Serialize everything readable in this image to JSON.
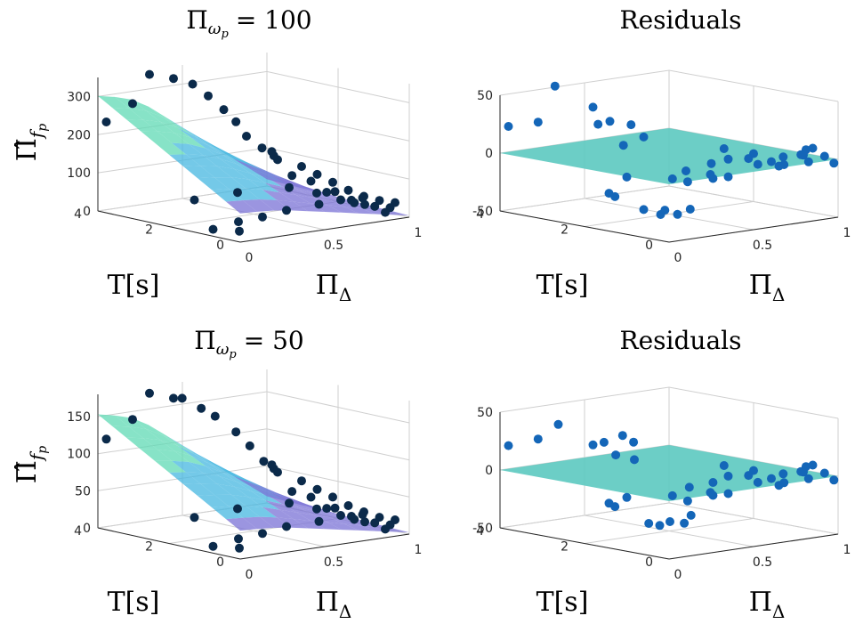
{
  "chart_data": [
    {
      "type": "surface3d",
      "title": "Π_ω_p = 100",
      "title_main": "Π",
      "title_sub": "ω",
      "title_subsub": "p",
      "title_value": "= 100",
      "zlabel_main": "Π̂",
      "zlabel_sub": "f",
      "zlabel_subsub": "p",
      "ylabel": "T[s]",
      "xlabel_main": "Π",
      "xlabel_sub": "Δ",
      "ztick_labels": [
        "0",
        "100",
        "200",
        "300"
      ],
      "ytick_labels": [
        "0",
        "2",
        "4"
      ],
      "xtick_labels": [
        "0",
        "0.5",
        "1"
      ],
      "zlim": [
        0,
        350
      ],
      "xlim": [
        0,
        1
      ],
      "ylim": [
        0,
        4
      ],
      "points": [
        {
          "x": 0.05,
          "y": 4.0,
          "z": 230
        },
        {
          "x": 0.1,
          "y": 3.5,
          "z": 285
        },
        {
          "x": 0.2,
          "y": 3.5,
          "z": 355
        },
        {
          "x": 0.3,
          "y": 3.3,
          "z": 342
        },
        {
          "x": 0.35,
          "y": 3.0,
          "z": 330
        },
        {
          "x": 0.4,
          "y": 2.8,
          "z": 300
        },
        {
          "x": 0.45,
          "y": 2.6,
          "z": 265
        },
        {
          "x": 0.48,
          "y": 2.4,
          "z": 235
        },
        {
          "x": 0.5,
          "y": 2.2,
          "z": 200
        },
        {
          "x": 0.55,
          "y": 2.0,
          "z": 170
        },
        {
          "x": 0.6,
          "y": 1.8,
          "z": 140
        },
        {
          "x": 0.62,
          "y": 2.0,
          "z": 145
        },
        {
          "x": 0.65,
          "y": 2.2,
          "z": 150
        },
        {
          "x": 0.7,
          "y": 1.6,
          "z": 120
        },
        {
          "x": 0.75,
          "y": 1.4,
          "z": 100
        },
        {
          "x": 0.8,
          "y": 1.2,
          "z": 80
        },
        {
          "x": 0.85,
          "y": 1.0,
          "z": 60
        },
        {
          "x": 0.9,
          "y": 0.8,
          "z": 45
        },
        {
          "x": 0.95,
          "y": 0.6,
          "z": 35
        },
        {
          "x": 1.0,
          "y": 0.4,
          "z": 30
        },
        {
          "x": 0.95,
          "y": 0.3,
          "z": 22
        },
        {
          "x": 0.9,
          "y": 0.2,
          "z": 15
        },
        {
          "x": 0.8,
          "y": 0.3,
          "z": 40
        },
        {
          "x": 0.7,
          "y": 0.5,
          "z": 55
        },
        {
          "x": 0.6,
          "y": 0.7,
          "z": 75
        },
        {
          "x": 0.5,
          "y": 1.0,
          "z": 90
        },
        {
          "x": 0.3,
          "y": 1.5,
          "z": 80
        },
        {
          "x": 0.15,
          "y": 2.0,
          "z": 60
        },
        {
          "x": 0.2,
          "y": 1.0,
          "z": 20
        },
        {
          "x": 0.3,
          "y": 0.8,
          "z": 30
        },
        {
          "x": 0.4,
          "y": 0.6,
          "z": 45
        },
        {
          "x": 0.55,
          "y": 0.4,
          "z": 55
        },
        {
          "x": 0.7,
          "y": 0.2,
          "z": 60
        },
        {
          "x": 0.05,
          "y": 1.0,
          "z": 10
        },
        {
          "x": 0.1,
          "y": 0.5,
          "z": 12
        },
        {
          "x": 0.75,
          "y": 0.9,
          "z": 65
        },
        {
          "x": 0.85,
          "y": 0.6,
          "z": 48
        },
        {
          "x": 0.65,
          "y": 1.1,
          "z": 95
        },
        {
          "x": 0.58,
          "y": 1.3,
          "z": 110
        },
        {
          "x": 0.68,
          "y": 0.8,
          "z": 70
        },
        {
          "x": 0.78,
          "y": 0.5,
          "z": 42
        },
        {
          "x": 0.88,
          "y": 0.4,
          "z": 28
        }
      ],
      "colors": {
        "top": "#5fd9b4",
        "mid": "#46b7e0",
        "low": "#7a72d6",
        "points": "#0b2a4a"
      }
    },
    {
      "type": "surface3d",
      "title": "Residuals",
      "ztick_labels": [
        "-50",
        "0",
        "50"
      ],
      "ytick_labels": [
        "0",
        "2",
        "4"
      ],
      "xtick_labels": [
        "0",
        "0.5",
        "1"
      ],
      "ylabel": "T[s]",
      "xlabel_main": "Π",
      "xlabel_sub": "Δ",
      "zlim": [
        -50,
        50
      ],
      "xlim": [
        0,
        1
      ],
      "ylim": [
        0,
        4
      ],
      "points": [
        {
          "x": 0.05,
          "y": 4.0,
          "z": 22
        },
        {
          "x": 0.1,
          "y": 3.5,
          "z": 28
        },
        {
          "x": 0.2,
          "y": 3.5,
          "z": 57
        },
        {
          "x": 0.3,
          "y": 3.0,
          "z": 40
        },
        {
          "x": 0.28,
          "y": 2.8,
          "z": 27
        },
        {
          "x": 0.35,
          "y": 2.8,
          "z": 28
        },
        {
          "x": 0.4,
          "y": 2.5,
          "z": 26
        },
        {
          "x": 0.45,
          "y": 2.4,
          "z": 15
        },
        {
          "x": 0.38,
          "y": 2.6,
          "z": 8
        },
        {
          "x": 0.3,
          "y": 2.2,
          "z": -15
        },
        {
          "x": 0.22,
          "y": 2.3,
          "z": -28
        },
        {
          "x": 0.18,
          "y": 2.0,
          "z": -28
        },
        {
          "x": 0.25,
          "y": 1.6,
          "z": -38
        },
        {
          "x": 0.3,
          "y": 1.4,
          "z": -42
        },
        {
          "x": 0.35,
          "y": 1.5,
          "z": -40
        },
        {
          "x": 0.4,
          "y": 1.4,
          "z": -44
        },
        {
          "x": 0.45,
          "y": 1.3,
          "z": -40
        },
        {
          "x": 0.5,
          "y": 1.6,
          "z": -10
        },
        {
          "x": 0.55,
          "y": 1.2,
          "z": -2
        },
        {
          "x": 0.6,
          "y": 1.0,
          "z": 2
        },
        {
          "x": 0.65,
          "y": 1.3,
          "z": 8
        },
        {
          "x": 0.7,
          "y": 0.8,
          "z": 6
        },
        {
          "x": 0.72,
          "y": 1.0,
          "z": 0
        },
        {
          "x": 0.75,
          "y": 0.9,
          "z": -5
        },
        {
          "x": 0.78,
          "y": 0.7,
          "z": -2
        },
        {
          "x": 0.8,
          "y": 0.5,
          "z": 3
        },
        {
          "x": 0.83,
          "y": 0.6,
          "z": -5
        },
        {
          "x": 0.85,
          "y": 0.8,
          "z": -8
        },
        {
          "x": 0.88,
          "y": 0.4,
          "z": 4
        },
        {
          "x": 0.9,
          "y": 0.3,
          "z": -2
        },
        {
          "x": 0.92,
          "y": 0.5,
          "z": 2
        },
        {
          "x": 0.95,
          "y": 0.4,
          "z": 8
        },
        {
          "x": 0.97,
          "y": 0.2,
          "z": 2
        },
        {
          "x": 1.0,
          "y": 0.1,
          "z": -4
        },
        {
          "x": 0.62,
          "y": 1.5,
          "z": -15
        },
        {
          "x": 0.66,
          "y": 1.6,
          "z": -20
        },
        {
          "x": 0.7,
          "y": 1.4,
          "z": -18
        },
        {
          "x": 0.56,
          "y": 1.8,
          "z": -22
        },
        {
          "x": 0.52,
          "y": 2.0,
          "z": -20
        },
        {
          "x": 0.86,
          "y": 0.2,
          "z": 10
        }
      ],
      "colors": {
        "plane": "#5cc9c0",
        "points": "#1466b8"
      }
    },
    {
      "type": "surface3d",
      "title": "Π_ω_p = 50",
      "title_main": "Π",
      "title_sub": "ω",
      "title_subsub": "p",
      "title_value": "= 50",
      "zlabel_main": "Π̂",
      "zlabel_sub": "f",
      "zlabel_subsub": "p",
      "ylabel": "T[s]",
      "xlabel_main": "Π",
      "xlabel_sub": "Δ",
      "ztick_labels": [
        "0",
        "50",
        "100",
        "150"
      ],
      "ytick_labels": [
        "0",
        "2",
        "4"
      ],
      "xtick_labels": [
        "0",
        "0.5",
        "1"
      ],
      "zlim": [
        0,
        180
      ],
      "xlim": [
        0,
        1
      ],
      "ylim": [
        0,
        4
      ],
      "points": [
        {
          "x": 0.05,
          "y": 4.0,
          "z": 118
        },
        {
          "x": 0.1,
          "y": 3.5,
          "z": 148
        },
        {
          "x": 0.2,
          "y": 3.5,
          "z": 180
        },
        {
          "x": 0.3,
          "y": 3.3,
          "z": 172
        },
        {
          "x": 0.33,
          "y": 3.2,
          "z": 172
        },
        {
          "x": 0.38,
          "y": 2.9,
          "z": 160
        },
        {
          "x": 0.42,
          "y": 2.7,
          "z": 150
        },
        {
          "x": 0.48,
          "y": 2.4,
          "z": 130
        },
        {
          "x": 0.52,
          "y": 2.2,
          "z": 112
        },
        {
          "x": 0.56,
          "y": 2.0,
          "z": 92
        },
        {
          "x": 0.6,
          "y": 1.8,
          "z": 78
        },
        {
          "x": 0.62,
          "y": 2.0,
          "z": 80
        },
        {
          "x": 0.65,
          "y": 2.2,
          "z": 82
        },
        {
          "x": 0.7,
          "y": 1.6,
          "z": 65
        },
        {
          "x": 0.75,
          "y": 1.4,
          "z": 54
        },
        {
          "x": 0.8,
          "y": 1.2,
          "z": 44
        },
        {
          "x": 0.85,
          "y": 1.0,
          "z": 33
        },
        {
          "x": 0.9,
          "y": 0.8,
          "z": 25
        },
        {
          "x": 0.95,
          "y": 0.6,
          "z": 18
        },
        {
          "x": 1.0,
          "y": 0.4,
          "z": 15
        },
        {
          "x": 0.95,
          "y": 0.3,
          "z": 11
        },
        {
          "x": 0.9,
          "y": 0.2,
          "z": 8
        },
        {
          "x": 0.8,
          "y": 0.3,
          "z": 20
        },
        {
          "x": 0.7,
          "y": 0.5,
          "z": 30
        },
        {
          "x": 0.6,
          "y": 0.7,
          "z": 40
        },
        {
          "x": 0.5,
          "y": 1.0,
          "z": 48
        },
        {
          "x": 0.3,
          "y": 1.5,
          "z": 42
        },
        {
          "x": 0.15,
          "y": 2.0,
          "z": 30
        },
        {
          "x": 0.2,
          "y": 1.0,
          "z": 10
        },
        {
          "x": 0.3,
          "y": 0.8,
          "z": 16
        },
        {
          "x": 0.4,
          "y": 0.6,
          "z": 24
        },
        {
          "x": 0.55,
          "y": 0.4,
          "z": 28
        },
        {
          "x": 0.7,
          "y": 0.2,
          "z": 32
        },
        {
          "x": 0.05,
          "y": 1.0,
          "z": 5
        },
        {
          "x": 0.1,
          "y": 0.5,
          "z": 6
        },
        {
          "x": 0.75,
          "y": 0.9,
          "z": 34
        },
        {
          "x": 0.85,
          "y": 0.6,
          "z": 25
        },
        {
          "x": 0.65,
          "y": 1.1,
          "z": 50
        },
        {
          "x": 0.58,
          "y": 1.3,
          "z": 58
        },
        {
          "x": 0.68,
          "y": 0.8,
          "z": 37
        },
        {
          "x": 0.78,
          "y": 0.5,
          "z": 22
        },
        {
          "x": 0.88,
          "y": 0.4,
          "z": 15
        }
      ],
      "colors": {
        "top": "#5fd9b4",
        "mid": "#46b7e0",
        "low": "#7a72d6",
        "points": "#0b2a4a"
      }
    },
    {
      "type": "surface3d",
      "title": "Residuals",
      "ztick_labels": [
        "-50",
        "0",
        "50"
      ],
      "ytick_labels": [
        "0",
        "2",
        "4"
      ],
      "xtick_labels": [
        "0",
        "0.5",
        "1"
      ],
      "ylabel": "T[s]",
      "xlabel_main": "Π",
      "xlabel_sub": "Δ",
      "zlim": [
        -50,
        50
      ],
      "xlim": [
        0,
        1
      ],
      "ylim": [
        0,
        4
      ],
      "points": [
        {
          "x": 0.05,
          "y": 4.0,
          "z": 20
        },
        {
          "x": 0.1,
          "y": 3.5,
          "z": 28
        },
        {
          "x": 0.22,
          "y": 3.5,
          "z": 38
        },
        {
          "x": 0.3,
          "y": 3.0,
          "z": 22
        },
        {
          "x": 0.34,
          "y": 2.9,
          "z": 24
        },
        {
          "x": 0.4,
          "y": 2.7,
          "z": 30
        },
        {
          "x": 0.44,
          "y": 2.6,
          "z": 24
        },
        {
          "x": 0.36,
          "y": 2.7,
          "z": 14
        },
        {
          "x": 0.42,
          "y": 2.5,
          "z": 10
        },
        {
          "x": 0.3,
          "y": 2.2,
          "z": -18
        },
        {
          "x": 0.22,
          "y": 2.3,
          "z": -22
        },
        {
          "x": 0.18,
          "y": 2.0,
          "z": -22
        },
        {
          "x": 0.28,
          "y": 1.6,
          "z": -36
        },
        {
          "x": 0.32,
          "y": 1.5,
          "z": -38
        },
        {
          "x": 0.38,
          "y": 1.5,
          "z": -36
        },
        {
          "x": 0.44,
          "y": 1.4,
          "z": -38
        },
        {
          "x": 0.48,
          "y": 1.4,
          "z": -32
        },
        {
          "x": 0.52,
          "y": 1.6,
          "z": -10
        },
        {
          "x": 0.56,
          "y": 1.2,
          "z": -4
        },
        {
          "x": 0.6,
          "y": 1.0,
          "z": 2
        },
        {
          "x": 0.65,
          "y": 1.3,
          "z": 8
        },
        {
          "x": 0.7,
          "y": 0.8,
          "z": 6
        },
        {
          "x": 0.72,
          "y": 1.0,
          "z": 0
        },
        {
          "x": 0.75,
          "y": 0.9,
          "z": -6
        },
        {
          "x": 0.78,
          "y": 0.7,
          "z": -2
        },
        {
          "x": 0.8,
          "y": 0.5,
          "z": 3
        },
        {
          "x": 0.83,
          "y": 0.6,
          "z": -6
        },
        {
          "x": 0.85,
          "y": 0.8,
          "z": -10
        },
        {
          "x": 0.88,
          "y": 0.4,
          "z": 4
        },
        {
          "x": 0.9,
          "y": 0.3,
          "z": -2
        },
        {
          "x": 0.92,
          "y": 0.5,
          "z": 2
        },
        {
          "x": 0.95,
          "y": 0.4,
          "z": 8
        },
        {
          "x": 0.97,
          "y": 0.2,
          "z": 2
        },
        {
          "x": 1.0,
          "y": 0.1,
          "z": -4
        },
        {
          "x": 0.62,
          "y": 1.5,
          "z": -16
        },
        {
          "x": 0.66,
          "y": 1.6,
          "z": -20
        },
        {
          "x": 0.7,
          "y": 1.4,
          "z": -18
        },
        {
          "x": 0.56,
          "y": 1.8,
          "z": -24
        },
        {
          "x": 0.52,
          "y": 2.0,
          "z": -20
        },
        {
          "x": 0.86,
          "y": 0.2,
          "z": 10
        }
      ],
      "colors": {
        "plane": "#5cc9c0",
        "points": "#1466b8"
      }
    }
  ]
}
